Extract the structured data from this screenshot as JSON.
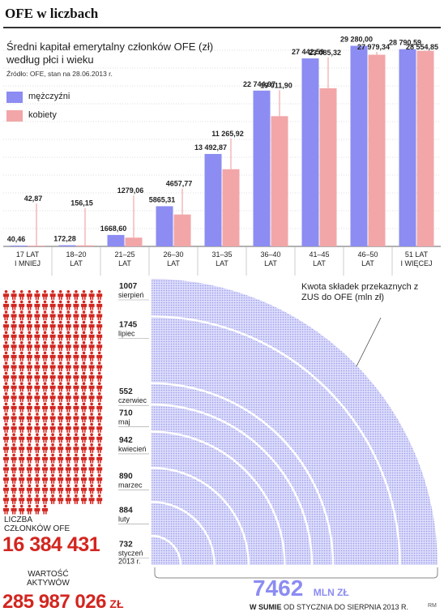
{
  "header": {
    "title": "OFE w liczbach"
  },
  "chart_data": [
    {
      "type": "bar",
      "title": "Średni kapitał emerytalny członków OFE (zł) według płci i wieku",
      "source": "Źródło: OFE, stan na 28.06.2013 r.",
      "legend": {
        "position": "top-left"
      },
      "categories": [
        "17 LAT\nI MNIEJ",
        "18–20\nLAT",
        "21–25\nLAT",
        "26–30\nLAT",
        "31–35\nLAT",
        "36–40\nLAT",
        "41–45\nLAT",
        "46–50\nLAT",
        "51 LAT\nI WIĘCEJ"
      ],
      "series": [
        {
          "name": "mężczyźni",
          "color": "#8c8cf2",
          "values": [
            40.46,
            172.28,
            1668.6,
            5865.31,
            13492.87,
            22744.97,
            27442.59,
            29280.0,
            28790.59
          ],
          "labels": [
            "40,46",
            "172,28",
            "1668,60",
            "5865,31",
            "13 492,87",
            "22 744,97",
            "27 442,59",
            "29 280,00",
            "28 790,59"
          ]
        },
        {
          "name": "kobiety",
          "color": "#f2a6a8",
          "values": [
            42.87,
            156.15,
            1279.06,
            4657.77,
            11265.92,
            19011.9,
            23085.32,
            27979.34,
            28554.85
          ],
          "labels": [
            "42,87",
            "156,15",
            "1279,06",
            "4657,77",
            "11 265,92",
            "19 011,90",
            "23 085,32",
            "27 979,34",
            "28 554,85"
          ]
        }
      ],
      "ylim": [
        0,
        31000
      ],
      "grid": "horizontal dotted"
    },
    {
      "type": "area",
      "title": "Kwota składek przekaznych z ZUS do OFE (mln zł)",
      "categories": [
        "sierpień",
        "lipiec",
        "czerwiec",
        "maj",
        "kwiecień",
        "marzec",
        "luty",
        "styczeń 2013 r."
      ],
      "values": [
        1007,
        1745,
        552,
        710,
        942,
        890,
        884,
        732
      ],
      "value_labels": [
        "1007",
        "1745",
        "552",
        "710",
        "942",
        "890",
        "884",
        "732"
      ],
      "total": {
        "value": "7462",
        "unit": "MLN ZŁ",
        "caption_bold": "W SUMIE",
        "caption_rest": "OD STYCZNIA DO SIERPNIA 2013 R."
      },
      "fill_color": "#a6a6f2"
    }
  ],
  "members": {
    "label_line1": "LICZBA",
    "label_line2": "CZŁONKÓW OFE",
    "value": "16 384 431",
    "icon_color": "#d3251f"
  },
  "assets": {
    "label_line1": "WARTOŚĆ",
    "label_line2": "AKTYWÓW",
    "value": "285 987 026",
    "unit": "ZŁ"
  },
  "credit": "RM"
}
